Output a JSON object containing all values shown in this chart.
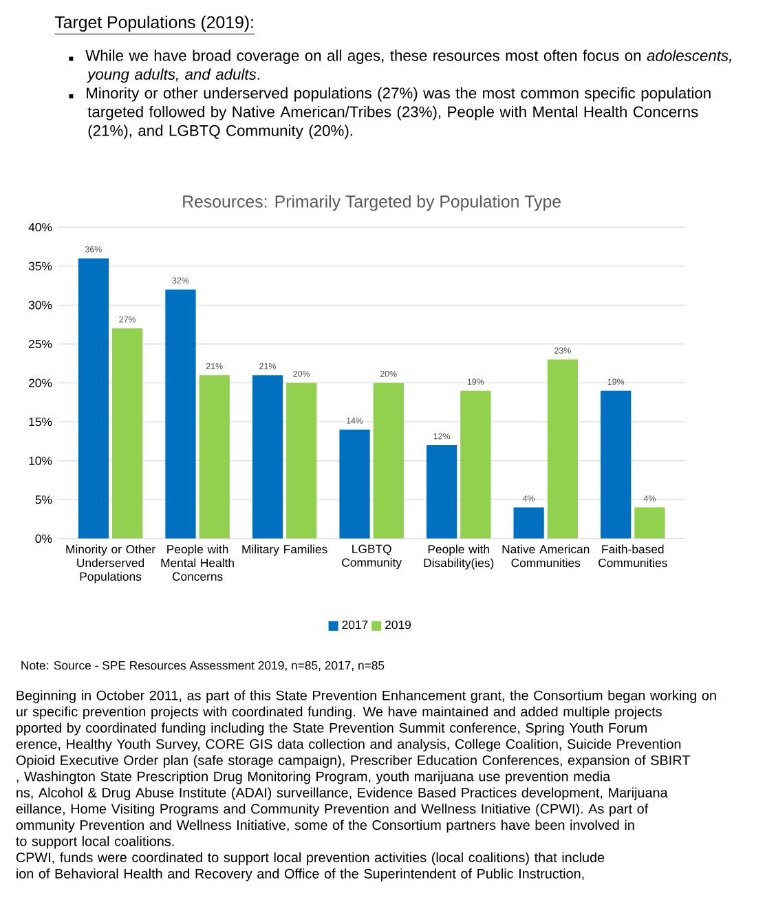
{
  "chart_data": {
    "type": "bar",
    "title": "Resources: Primarily Targeted by Population Type",
    "categories": [
      "Minority or Other Underserved Populations",
      "People with Mental Health Concerns",
      "Military Families",
      "LGBTQ Community",
      "People with Disability(ies)",
      "Native American Communities",
      "Faith-based Communities"
    ],
    "series": [
      {
        "name": "2017",
        "color": "#0070c0",
        "values": [
          36,
          32,
          21,
          14,
          12,
          4,
          19
        ],
        "value_labels": [
          "36%",
          "32%",
          "21%",
          "14%",
          "12%",
          "4%",
          "19%"
        ]
      },
      {
        "name": "2019",
        "color": "#92d050",
        "values": [
          27,
          21,
          20,
          20,
          19,
          23,
          4
        ],
        "value_labels": [
          "27%",
          "21%",
          "20%",
          "20%",
          "19%",
          "23%",
          "4%"
        ]
      }
    ],
    "ylim": [
      0,
      40
    ],
    "yticks": [
      {
        "value": 0,
        "label": "0%"
      },
      {
        "value": 5,
        "label": "5%"
      },
      {
        "value": 10,
        "label": "10%"
      },
      {
        "value": 15,
        "label": "15%"
      },
      {
        "value": 20,
        "label": "20%"
      },
      {
        "value": 25,
        "label": "25%"
      },
      {
        "value": 30,
        "label": "30%"
      },
      {
        "value": 35,
        "label": "35%"
      },
      {
        "value": 40,
        "label": "40%"
      }
    ],
    "grid": "y",
    "legend": "bottom",
    "annotations": [
      "Target Populations (2019):",
      "While we have broad coverage on all ages, these resources most often focus on *adolescents, young adults, and adults*.",
      "Minority or other underserved populations (27%) was the most common specific population targeted followed by Native American/Tribes (23%), People with Mental Health Concerns (21%), and LGBTQ Community (20%).",
      "Note: Source - SPE Resources Assessment 2019, n=85, 2017, n=85",
      "Beginning in October 2011, as part of this State Prevention Enhancement grant, the Consortium began working on",
      "ur specific prevention projects with coordinated funding.  We have maintained and added multiple projects",
      "pported by coordinated funding including the State Prevention Summit conference, Spring Youth Forum",
      "erence, Healthy Youth Survey, CORE GIS data collection and analysis, College Coalition, Suicide Prevention",
      "Opioid Executive Order plan (safe storage campaign), Prescriber Education Conferences, expansion of SBIRT",
      ", Washington State Prescription Drug Monitoring Program, youth marijuana use prevention media",
      "ns, Alcohol & Drug Abuse Institute (ADAI) surveillance, Evidence Based Practices development, Marijuana",
      "eillance, Home Visiting Programs and Community Prevention and Wellness Initiative (CPWI).  As part of",
      "ommunity Prevention and Wellness Initiative, some of the Consortium partners have been involved in",
      "to support local coalitions.",
      "CPWI, funds were coordinated to support local prevention activities (local coalitions) that include",
      "ion of Behavioral Health and Recovery and Office of the Superintendent of Public Instruction,"
    ]
  }
}
